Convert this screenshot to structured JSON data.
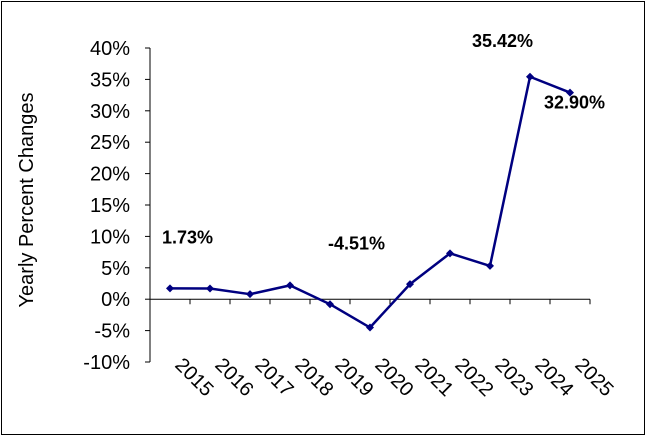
{
  "chart_data": {
    "type": "line",
    "title": "",
    "xlabel": "",
    "ylabel": "Yearly Percent Changes",
    "categories": [
      "2015",
      "2016",
      "2017",
      "2018",
      "2019",
      "2020",
      "2021",
      "2022",
      "2023",
      "2024",
      "2025"
    ],
    "series": [
      {
        "values": [
          1.73,
          1.7,
          0.8,
          2.2,
          -0.8,
          -4.51,
          2.4,
          7.3,
          5.3,
          35.42,
          32.9
        ],
        "color": "#000080"
      }
    ],
    "y_ticks": [
      "40%",
      "35%",
      "30%",
      "25%",
      "20%",
      "15%",
      "10%",
      "5%",
      "0%",
      "-5%",
      "-10%"
    ],
    "ylim": [
      -10,
      40
    ],
    "grid": false,
    "legend": "none",
    "data_labels": [
      {
        "index": 0,
        "text": "1.73%"
      },
      {
        "index": 5,
        "text": "-4.51%"
      },
      {
        "index": 9,
        "text": "35.42%"
      },
      {
        "index": 10,
        "text": "32.90%"
      }
    ]
  }
}
